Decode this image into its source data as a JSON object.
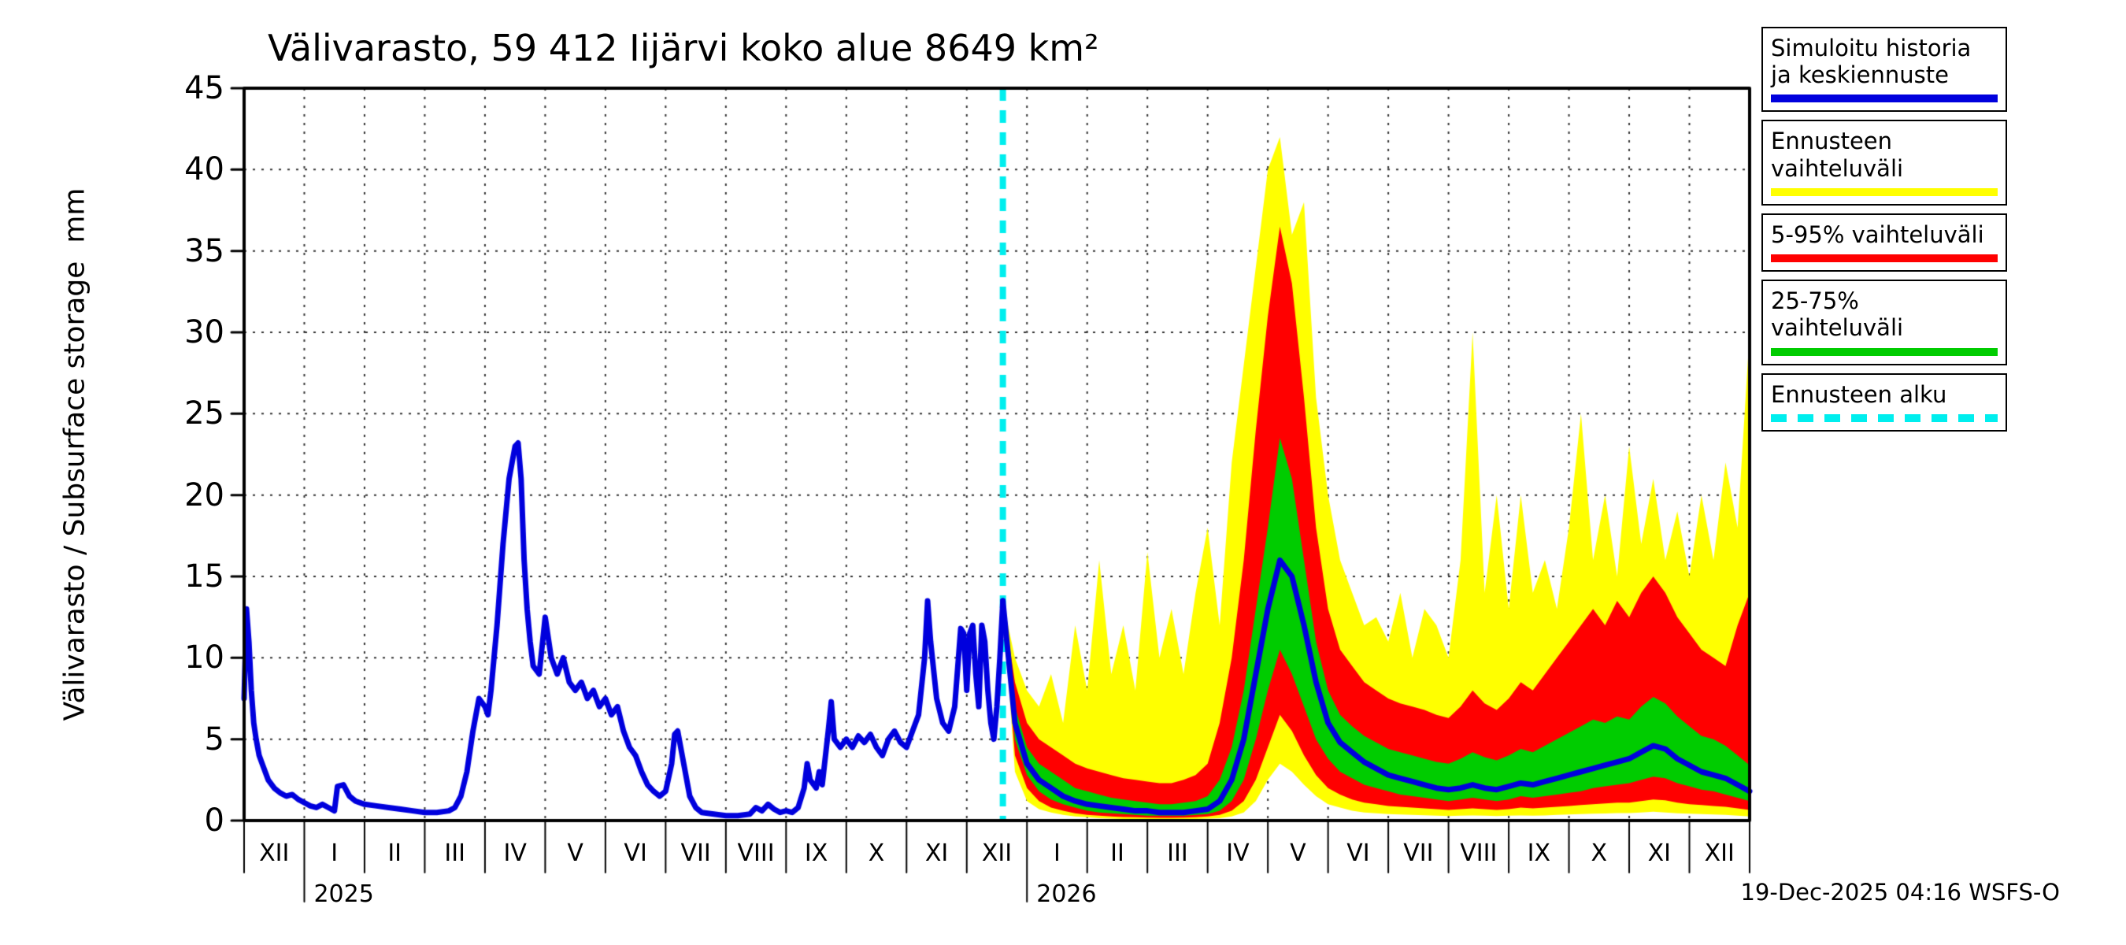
{
  "title": "Välivarasto, 59 412 Iijärvi koko alue 8649 km²",
  "ylabel": "Välivarasto / Subsurface storage  mm",
  "timestamp": "19-Dec-2025 04:16 WSFS-O",
  "legend": [
    {
      "label": "Simuloitu historia ja keskiennuste",
      "color": "#0000dd",
      "style": "solid"
    },
    {
      "label": "Ennusteen vaihteluväli",
      "color": "#ffff00",
      "style": "solid"
    },
    {
      "label": "5-95% vaihteluväli",
      "color": "#ff0000",
      "style": "solid"
    },
    {
      "label": "25-75% vaihteluväli",
      "color": "#00cc00",
      "style": "solid"
    },
    {
      "label": "Ennusteen alku",
      "color": "#00eeee",
      "style": "dashed"
    }
  ],
  "chart_data": {
    "type": "line",
    "title": "Välivarasto, 59 412 Iijärvi koko alue 8649 km²",
    "ylabel": "Välivarasto / Subsurface storage  mm",
    "ylim": [
      0,
      45
    ],
    "yticks": [
      0,
      5,
      10,
      15,
      20,
      25,
      30,
      35,
      40,
      45
    ],
    "x_months": [
      "XII",
      "I",
      "II",
      "III",
      "IV",
      "V",
      "VI",
      "VII",
      "VIII",
      "IX",
      "X",
      "XI",
      "XII",
      "I",
      "II",
      "III",
      "IV",
      "V",
      "VI",
      "VII",
      "VIII",
      "IX",
      "X",
      "XI",
      "XII"
    ],
    "years": [
      {
        "label": "2025",
        "boundary_month_index": 1
      },
      {
        "label": "2026",
        "boundary_month_index": 13
      }
    ],
    "forecast_start_x": 12.6,
    "grid": true,
    "legend_position": "top-right",
    "colors": {
      "history": "#0000dd",
      "median": "#0000dd",
      "band_minmax": "#ffff00",
      "band_5_95": "#ff0000",
      "band_25_75": "#00cc00",
      "forecast_start": "#00eeee"
    },
    "history": {
      "x": [
        0.0,
        0.04,
        0.08,
        0.12,
        0.16,
        0.2,
        0.25,
        0.3,
        0.4,
        0.5,
        0.6,
        0.7,
        0.8,
        0.9,
        1.0,
        1.1,
        1.2,
        1.3,
        1.4,
        1.5,
        1.55,
        1.65,
        1.75,
        1.85,
        2.0,
        2.2,
        2.4,
        2.6,
        2.8,
        3.0,
        3.2,
        3.4,
        3.5,
        3.6,
        3.7,
        3.8,
        3.9,
        4.0,
        4.05,
        4.1,
        4.2,
        4.3,
        4.4,
        4.5,
        4.55,
        4.6,
        4.65,
        4.7,
        4.75,
        4.8,
        4.9,
        5.0,
        5.1,
        5.2,
        5.3,
        5.4,
        5.5,
        5.6,
        5.7,
        5.8,
        5.9,
        6.0,
        6.1,
        6.2,
        6.3,
        6.4,
        6.5,
        6.6,
        6.7,
        6.8,
        6.9,
        7.0,
        7.1,
        7.15,
        7.2,
        7.3,
        7.4,
        7.5,
        7.6,
        7.8,
        8.0,
        8.2,
        8.4,
        8.5,
        8.6,
        8.7,
        8.8,
        8.9,
        9.0,
        9.1,
        9.2,
        9.3,
        9.35,
        9.4,
        9.5,
        9.55,
        9.6,
        9.7,
        9.75,
        9.8,
        9.9,
        10.0,
        10.1,
        10.2,
        10.3,
        10.4,
        10.5,
        10.6,
        10.7,
        10.8,
        10.9,
        11.0,
        11.1,
        11.2,
        11.3,
        11.35,
        11.4,
        11.5,
        11.6,
        11.7,
        11.8,
        11.9,
        11.95,
        12.0,
        12.05,
        12.1,
        12.15,
        12.2,
        12.25,
        12.3,
        12.35,
        12.4,
        12.45,
        12.5,
        12.55,
        12.6
      ],
      "y": [
        7.5,
        13.0,
        11.0,
        8.0,
        6.0,
        5.0,
        4.0,
        3.5,
        2.5,
        2.0,
        1.7,
        1.5,
        1.6,
        1.3,
        1.1,
        0.9,
        0.8,
        1.0,
        0.8,
        0.6,
        2.1,
        2.2,
        1.5,
        1.2,
        1.0,
        0.9,
        0.8,
        0.7,
        0.6,
        0.5,
        0.5,
        0.6,
        0.8,
        1.5,
        3.0,
        5.5,
        7.5,
        7.0,
        6.5,
        8.0,
        12.0,
        17.0,
        21.0,
        23.0,
        23.2,
        21.0,
        16.0,
        13.0,
        11.0,
        9.5,
        9.0,
        12.5,
        10.0,
        9.0,
        10.0,
        8.5,
        8.0,
        8.5,
        7.5,
        8.0,
        7.0,
        7.5,
        6.5,
        7.0,
        5.5,
        4.5,
        4.0,
        3.0,
        2.2,
        1.8,
        1.5,
        1.8,
        3.5,
        5.3,
        5.5,
        3.5,
        1.5,
        0.8,
        0.5,
        0.4,
        0.3,
        0.3,
        0.4,
        0.8,
        0.6,
        1.0,
        0.7,
        0.5,
        0.6,
        0.5,
        0.8,
        2.0,
        3.5,
        2.5,
        2.0,
        3.0,
        2.2,
        5.5,
        7.3,
        5.0,
        4.5,
        5.0,
        4.5,
        5.2,
        4.8,
        5.3,
        4.5,
        4.0,
        5.0,
        5.5,
        4.8,
        4.5,
        5.5,
        6.5,
        10.0,
        13.5,
        11.0,
        7.5,
        6.0,
        5.5,
        7.0,
        11.8,
        11.5,
        8.0,
        11.5,
        12.0,
        9.0,
        7.0,
        12.0,
        11.0,
        8.0,
        6.0,
        5.0,
        7.0,
        10.0,
        13.5
      ]
    },
    "forecast": {
      "x": [
        12.6,
        12.8,
        13.0,
        13.2,
        13.4,
        13.6,
        13.8,
        14.0,
        14.2,
        14.4,
        14.6,
        14.8,
        15.0,
        15.2,
        15.4,
        15.6,
        15.8,
        16.0,
        16.2,
        16.4,
        16.6,
        16.8,
        17.0,
        17.2,
        17.4,
        17.6,
        17.8,
        18.0,
        18.2,
        18.4,
        18.6,
        18.8,
        19.0,
        19.2,
        19.4,
        19.6,
        19.8,
        20.0,
        20.2,
        20.4,
        20.6,
        20.8,
        21.0,
        21.2,
        21.4,
        21.6,
        21.8,
        22.0,
        22.2,
        22.4,
        22.6,
        22.8,
        23.0,
        23.2,
        23.4,
        23.6,
        23.8,
        24.0,
        24.2,
        24.4,
        24.6,
        24.8,
        25.0
      ],
      "median": [
        13.5,
        6,
        3.5,
        2.5,
        2.0,
        1.5,
        1.2,
        1.0,
        0.9,
        0.8,
        0.7,
        0.6,
        0.6,
        0.5,
        0.5,
        0.5,
        0.6,
        0.7,
        1.2,
        2.5,
        5,
        9,
        13,
        16,
        15,
        12,
        8.5,
        6,
        4.8,
        4.2,
        3.6,
        3.2,
        2.8,
        2.6,
        2.4,
        2.2,
        2.0,
        1.9,
        2.0,
        2.2,
        2.0,
        1.9,
        2.1,
        2.3,
        2.2,
        2.4,
        2.6,
        2.8,
        3.0,
        3.2,
        3.4,
        3.6,
        3.8,
        4.2,
        4.6,
        4.4,
        3.8,
        3.4,
        3.0,
        2.8,
        2.6,
        2.2,
        1.8
      ],
      "p75": [
        13.5,
        7,
        4.5,
        3.5,
        3.0,
        2.5,
        2.0,
        1.8,
        1.6,
        1.4,
        1.3,
        1.2,
        1.1,
        1.0,
        1.0,
        1.1,
        1.2,
        1.5,
        2.5,
        4.5,
        8,
        13,
        18,
        23.5,
        21,
        16,
        11,
        8,
        6.5,
        5.8,
        5.2,
        4.8,
        4.4,
        4.2,
        4.0,
        3.8,
        3.6,
        3.5,
        3.8,
        4.2,
        3.9,
        3.7,
        4.0,
        4.4,
        4.2,
        4.6,
        5.0,
        5.4,
        5.8,
        6.2,
        6.0,
        6.4,
        6.2,
        7.0,
        7.6,
        7.2,
        6.4,
        5.8,
        5.2,
        5.0,
        4.6,
        4.0,
        3.4
      ],
      "p25": [
        13.5,
        5,
        2.8,
        1.8,
        1.3,
        1.0,
        0.8,
        0.6,
        0.5,
        0.45,
        0.4,
        0.35,
        0.3,
        0.3,
        0.3,
        0.3,
        0.35,
        0.4,
        0.6,
        1.2,
        2.5,
        5,
        8,
        10.5,
        9,
        7,
        5,
        3.8,
        3.0,
        2.6,
        2.2,
        2.0,
        1.8,
        1.6,
        1.5,
        1.4,
        1.3,
        1.2,
        1.3,
        1.4,
        1.3,
        1.2,
        1.3,
        1.5,
        1.4,
        1.5,
        1.6,
        1.7,
        1.8,
        2.0,
        2.1,
        2.2,
        2.3,
        2.5,
        2.7,
        2.6,
        2.3,
        2.1,
        1.9,
        1.8,
        1.6,
        1.4,
        1.2
      ],
      "p95": [
        13.5,
        8.5,
        6,
        5,
        4.5,
        4,
        3.5,
        3.2,
        3.0,
        2.8,
        2.6,
        2.5,
        2.4,
        2.3,
        2.3,
        2.5,
        2.8,
        3.5,
        6,
        10,
        16,
        24,
        31,
        36.5,
        33,
        26,
        18,
        13,
        10.5,
        9.5,
        8.5,
        8.0,
        7.5,
        7.2,
        7.0,
        6.8,
        6.5,
        6.3,
        7.0,
        8.0,
        7.2,
        6.8,
        7.5,
        8.5,
        8.0,
        9.0,
        10,
        11,
        12,
        13,
        12,
        13.5,
        12.5,
        14,
        15,
        14,
        12.5,
        11.5,
        10.5,
        10,
        9.5,
        12,
        14
      ],
      "p5": [
        13.5,
        4,
        2,
        1.2,
        0.8,
        0.6,
        0.45,
        0.35,
        0.3,
        0.25,
        0.22,
        0.2,
        0.18,
        0.17,
        0.17,
        0.18,
        0.2,
        0.25,
        0.35,
        0.6,
        1.2,
        2.5,
        4.5,
        6.5,
        5.5,
        4,
        2.8,
        2.0,
        1.6,
        1.3,
        1.1,
        1.0,
        0.9,
        0.85,
        0.8,
        0.75,
        0.7,
        0.65,
        0.7,
        0.75,
        0.7,
        0.65,
        0.7,
        0.8,
        0.75,
        0.8,
        0.85,
        0.9,
        0.95,
        1.0,
        1.05,
        1.1,
        1.1,
        1.2,
        1.3,
        1.25,
        1.1,
        1.0,
        0.95,
        0.9,
        0.85,
        0.75,
        0.65
      ],
      "max": [
        13.5,
        10,
        8,
        7,
        9,
        6,
        12,
        8,
        16,
        9,
        12,
        8,
        16.5,
        10,
        13,
        9,
        14,
        18,
        12,
        22,
        28,
        34,
        40,
        42,
        36,
        38,
        26,
        20,
        16,
        14,
        12,
        12.5,
        11,
        14,
        10,
        13,
        12,
        10,
        16,
        30,
        14,
        20,
        13,
        20,
        14,
        16,
        13,
        18,
        25,
        16,
        20,
        15,
        23,
        17,
        21,
        16,
        19,
        15,
        20,
        16,
        22,
        18,
        30
      ],
      "min": [
        13.5,
        3,
        1.2,
        0.7,
        0.5,
        0.35,
        0.25,
        0.2,
        0.15,
        0.12,
        0.1,
        0.1,
        0.1,
        0.1,
        0.1,
        0.1,
        0.1,
        0.12,
        0.15,
        0.25,
        0.5,
        1.2,
        2.5,
        3.5,
        3,
        2.2,
        1.5,
        1.0,
        0.8,
        0.6,
        0.5,
        0.45,
        0.4,
        0.38,
        0.35,
        0.33,
        0.3,
        0.28,
        0.3,
        0.32,
        0.3,
        0.28,
        0.3,
        0.32,
        0.3,
        0.32,
        0.35,
        0.38,
        0.4,
        0.42,
        0.44,
        0.46,
        0.46,
        0.5,
        0.55,
        0.5,
        0.45,
        0.42,
        0.4,
        0.38,
        0.35,
        0.3,
        0.25
      ]
    }
  }
}
